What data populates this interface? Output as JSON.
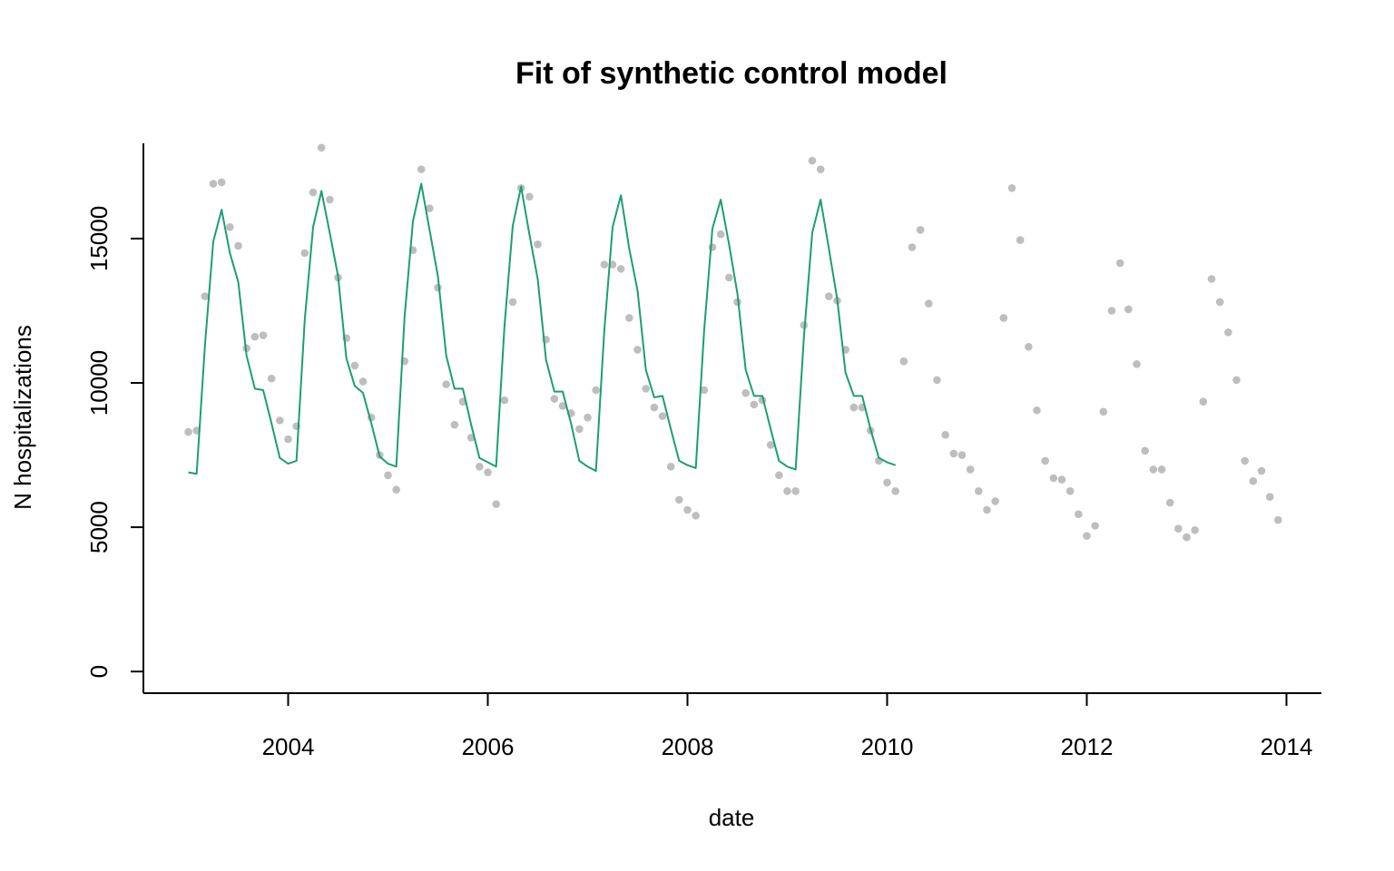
{
  "chart_data": {
    "type": "scatter",
    "title": "Fit of synthetic control model",
    "xlabel": "date",
    "ylabel": "N hospitalizations",
    "xlim": [
      2002.55,
      2014.35
    ],
    "ylim": [
      -750,
      18300
    ],
    "x_ticks": [
      2004,
      2006,
      2008,
      2010,
      2012,
      2014
    ],
    "x_tick_labels": [
      "2004",
      "2006",
      "2008",
      "2010",
      "2012",
      "2014"
    ],
    "y_ticks": [
      0,
      5000,
      10000,
      15000
    ],
    "y_tick_labels": [
      "0",
      "5000",
      "10000",
      "15000"
    ],
    "grid": false,
    "legend": "none",
    "start_year": 2003,
    "series": [
      {
        "kind": "points",
        "color": "#bebebe",
        "values": [
          8300,
          8350,
          13000,
          16900,
          16950,
          15400,
          14750,
          11200,
          11600,
          11650,
          10150,
          8700,
          8050,
          8500,
          14500,
          16600,
          18150,
          16350,
          13650,
          11550,
          10600,
          10050,
          8800,
          7500,
          6800,
          6300,
          10750,
          14600,
          17400,
          16050,
          13300,
          9950,
          8550,
          9350,
          8100,
          7100,
          6900,
          5800,
          9400,
          12800,
          16750,
          16450,
          14800,
          11500,
          9450,
          9200,
          8950,
          8400,
          8800,
          9750,
          14100,
          14100,
          13950,
          12250,
          11150,
          9800,
          9150,
          8850,
          7100,
          5950,
          5600,
          5400,
          9750,
          14700,
          15150,
          13650,
          12800,
          9650,
          9250,
          9400,
          7850,
          6800,
          6250,
          6250,
          12000,
          17700,
          17400,
          13000,
          12850,
          11150,
          9150,
          9150,
          8350,
          7300,
          6550,
          6250,
          10750,
          14700,
          15300,
          12750,
          10100,
          8200,
          7550,
          7500,
          7000,
          6250,
          5600,
          5900,
          12250,
          16750,
          14950,
          11250,
          9050,
          7300,
          6700,
          6650,
          6250,
          5450,
          4700,
          5050,
          9000,
          12500,
          14150,
          12550,
          10650,
          7650,
          7000,
          7000,
          5850,
          4950,
          4650,
          4900,
          9350,
          13600,
          12800,
          11750,
          10100,
          7300,
          6600,
          6950,
          6050,
          5250
        ]
      },
      {
        "kind": "line",
        "color": "#1b9e77",
        "values": [
          6900,
          6850,
          11300,
          14900,
          16000,
          14500,
          13500,
          10950,
          9800,
          9750,
          8600,
          7400,
          7200,
          7300,
          12200,
          15400,
          16650,
          15200,
          13700,
          10850,
          9900,
          9650,
          8600,
          7450,
          7200,
          7100,
          12300,
          15600,
          16900,
          15300,
          13700,
          10950,
          9800,
          9800,
          8550,
          7400,
          7250,
          7100,
          11950,
          15450,
          16800,
          15150,
          13600,
          10800,
          9700,
          9700,
          8600,
          7300,
          7100,
          6950,
          11800,
          15400,
          16500,
          14650,
          13200,
          10450,
          9500,
          9550,
          8400,
          7300,
          7150,
          7050,
          11800,
          15350,
          16350,
          14800,
          13100,
          10450,
          9550,
          9550,
          8400,
          7300,
          7100,
          7000,
          11600,
          15200,
          16350,
          14650,
          12900,
          10350,
          9550,
          9550,
          8400,
          7400,
          7250,
          7150
        ]
      }
    ]
  }
}
